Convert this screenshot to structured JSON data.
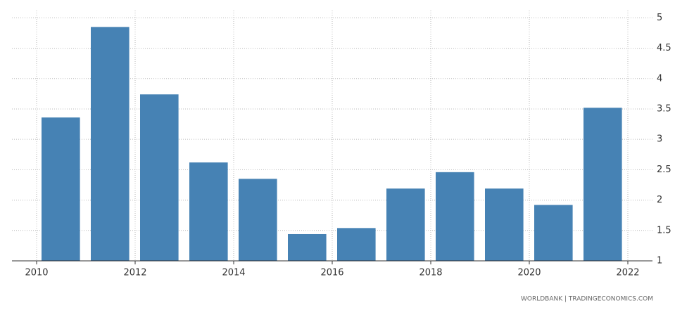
{
  "chart_data": {
    "type": "bar",
    "x": [
      2010,
      2011,
      2012,
      2013,
      2014,
      2015,
      2016,
      2017,
      2018,
      2019,
      2020,
      2021
    ],
    "values": [
      3.36,
      4.85,
      3.74,
      2.62,
      2.35,
      1.44,
      1.54,
      2.19,
      2.46,
      2.19,
      1.92,
      3.52
    ],
    "color": "#4682b4",
    "xlim": [
      2009.5,
      2022.5
    ],
    "xticks": [
      2010,
      2012,
      2014,
      2016,
      2018,
      2020,
      2022
    ],
    "ylim": [
      1,
      5.12
    ],
    "yticks": [
      1,
      1.5,
      2,
      2.5,
      3,
      3.5,
      4,
      4.5,
      5
    ],
    "grid": true,
    "source": "WORLDBANK | TRADINGECONOMICS.COM"
  }
}
